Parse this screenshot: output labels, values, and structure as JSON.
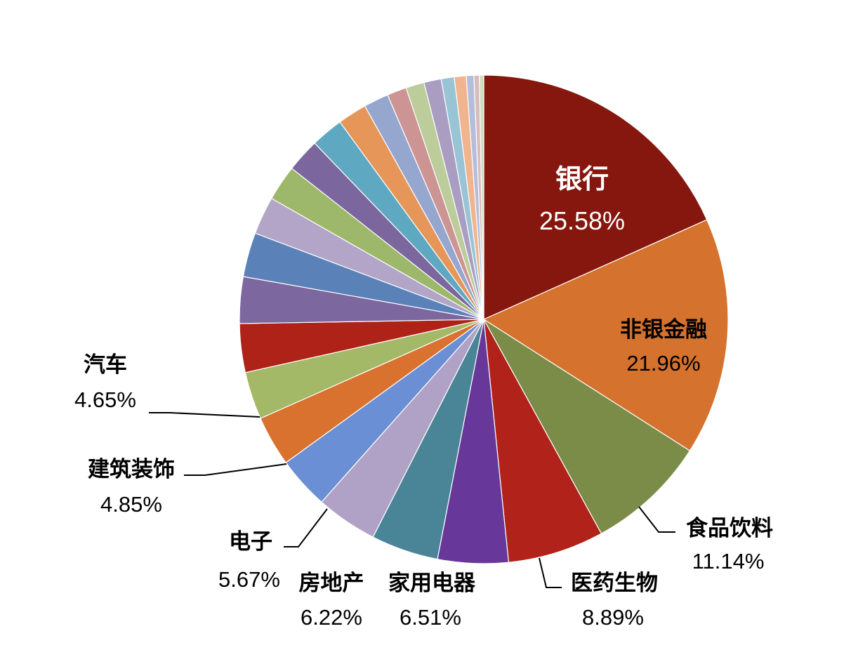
{
  "chart_data": {
    "type": "pie",
    "title": "",
    "start_angle_deg": 0,
    "direction": "clockwise",
    "slices": [
      {
        "label": "银行",
        "value": 25.58,
        "value_text": "25.58%",
        "color": "#85170E"
      },
      {
        "label": "非银金融",
        "value": 21.96,
        "value_text": "21.96%",
        "color": "#D4722E"
      },
      {
        "label": "食品饮料",
        "value": 11.14,
        "value_text": "11.14%",
        "color": "#7A8C48"
      },
      {
        "label": "医药生物",
        "value": 8.89,
        "value_text": "8.89%",
        "color": "#B0221A"
      },
      {
        "label": "家用电器",
        "value": 6.51,
        "value_text": "6.51%",
        "color": "#67379A"
      },
      {
        "label": "房地产",
        "value": 6.22,
        "value_text": "6.22%",
        "color": "#4A8597"
      },
      {
        "label": "电子",
        "value": 5.67,
        "value_text": "5.67%",
        "color": "#B0A2C6"
      },
      {
        "label": "建筑装饰",
        "value": 4.85,
        "value_text": "4.85%",
        "color": "#6A8FD4"
      },
      {
        "label": "汽车",
        "value": 4.65,
        "value_text": "4.65%",
        "color": "#D9712F"
      },
      {
        "label": "",
        "value": 4.4,
        "color": "#A3B968"
      },
      {
        "label": "",
        "value": 4.5,
        "color": "#AE2218"
      },
      {
        "label": "",
        "value": 4.3,
        "color": "#7C679E"
      },
      {
        "label": "",
        "value": 4.1,
        "color": "#5A82B9"
      },
      {
        "label": "",
        "value": 3.5,
        "color": "#B2A5C7"
      },
      {
        "label": "",
        "value": 3.3,
        "color": "#9DB86B"
      },
      {
        "label": "",
        "value": 3.1,
        "color": "#7B669E"
      },
      {
        "label": "",
        "value": 3.0,
        "color": "#5FA8C2"
      },
      {
        "label": "",
        "value": 2.7,
        "color": "#E7965A"
      },
      {
        "label": "",
        "value": 2.3,
        "color": "#96A7CF"
      },
      {
        "label": "",
        "value": 1.8,
        "color": "#CC9594"
      },
      {
        "label": "",
        "value": 1.7,
        "color": "#BCCC9A"
      },
      {
        "label": "",
        "value": 1.6,
        "color": "#A99EC1"
      },
      {
        "label": "",
        "value": 1.2,
        "color": "#98C4D6"
      },
      {
        "label": "",
        "value": 1.1,
        "color": "#F0B48E"
      },
      {
        "label": "",
        "value": 0.7,
        "color": "#B4BEDC"
      },
      {
        "label": "",
        "value": 0.5,
        "color": "#D6BCBB"
      },
      {
        "label": "",
        "value": 0.4,
        "color": "#D2DBBA"
      }
    ]
  }
}
